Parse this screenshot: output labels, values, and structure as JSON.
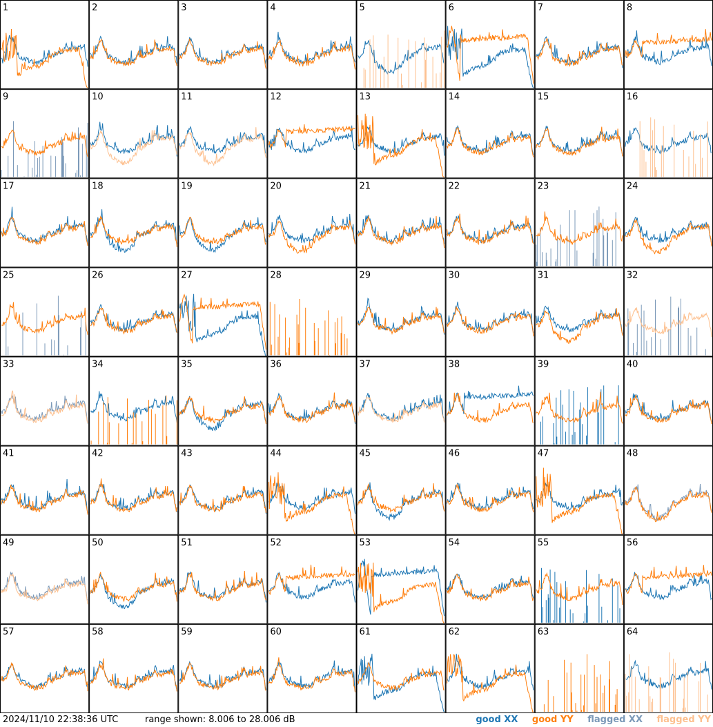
{
  "footer": {
    "timestamp": "2024/11/10 22:38:36 UTC",
    "range_text": "range shown: 8.006 to 28.006 dB"
  },
  "legend": {
    "good_xx": "good XX",
    "good_yy": "good YY",
    "flagged_xx": "flagged XX",
    "flagged_yy": "flagged YY"
  },
  "colors": {
    "good_xx": "#1f77b4",
    "good_yy": "#ff7f0e",
    "flagged_xx": "#7b99b8",
    "flagged_yy": "#fdc08f"
  },
  "chart_data": {
    "type": "line",
    "grid": "8x8",
    "y_units": "dB",
    "ylim": [
      8.006,
      28.006
    ],
    "panels": [
      {
        "id": "1",
        "xx": "zig",
        "yy": "dip_low_bad",
        "xx_flag": false,
        "yy_flag": false
      },
      {
        "id": "2",
        "xx": "normal",
        "yy": "normal",
        "xx_flag": false,
        "yy_flag": false
      },
      {
        "id": "3",
        "xx": "normal",
        "yy": "normal",
        "xx_flag": false,
        "yy_flag": false
      },
      {
        "id": "4",
        "xx": "normal",
        "yy": "normal",
        "xx_flag": false,
        "yy_flag": false
      },
      {
        "id": "5",
        "xx": "dip",
        "yy": "spikes",
        "xx_flag": false,
        "yy_flag": true
      },
      {
        "id": "6",
        "xx": "dip_low_bad",
        "yy": "flat_high",
        "xx_flag": false,
        "yy_flag": false
      },
      {
        "id": "7",
        "xx": "normal",
        "yy": "normal",
        "xx_flag": false,
        "yy_flag": false
      },
      {
        "id": "8",
        "xx": "normal",
        "yy": "flat",
        "xx_flag": false,
        "yy_flag": false
      },
      {
        "id": "9",
        "xx": "spikes",
        "yy": "normal",
        "xx_flag": true,
        "yy_flag": false
      },
      {
        "id": "10",
        "xx": "normal",
        "yy": "dip",
        "xx_flag": false,
        "yy_flag": true
      },
      {
        "id": "11",
        "xx": "normal",
        "yy": "dip",
        "xx_flag": false,
        "yy_flag": true
      },
      {
        "id": "12",
        "xx": "zig",
        "yy": "flat",
        "xx_flag": false,
        "yy_flag": false
      },
      {
        "id": "13",
        "xx": "normal",
        "yy": "dip_low_bad",
        "xx_flag": false,
        "yy_flag": false
      },
      {
        "id": "14",
        "xx": "normal",
        "yy": "normal",
        "xx_flag": false,
        "yy_flag": false
      },
      {
        "id": "15",
        "xx": "normal",
        "yy": "normal",
        "xx_flag": false,
        "yy_flag": false
      },
      {
        "id": "16",
        "xx": "normal",
        "yy": "spikes",
        "xx_flag": false,
        "yy_flag": true
      },
      {
        "id": "17",
        "xx": "normal",
        "yy": "normal",
        "xx_flag": false,
        "yy_flag": false
      },
      {
        "id": "18",
        "xx": "dip",
        "yy": "normal",
        "xx_flag": false,
        "yy_flag": false
      },
      {
        "id": "19",
        "xx": "dip",
        "yy": "normal",
        "xx_flag": false,
        "yy_flag": false
      },
      {
        "id": "20",
        "xx": "normal",
        "yy": "dip",
        "xx_flag": false,
        "yy_flag": false
      },
      {
        "id": "21",
        "xx": "normal",
        "yy": "normal",
        "xx_flag": false,
        "yy_flag": false
      },
      {
        "id": "22",
        "xx": "normal",
        "yy": "normal",
        "xx_flag": false,
        "yy_flag": false
      },
      {
        "id": "23",
        "xx": "spikes",
        "yy": "normal",
        "xx_flag": true,
        "yy_flag": false
      },
      {
        "id": "24",
        "xx": "normal",
        "yy": "dip",
        "xx_flag": false,
        "yy_flag": false
      },
      {
        "id": "25",
        "xx": "spikes",
        "yy": "normal",
        "xx_flag": true,
        "yy_flag": false
      },
      {
        "id": "26",
        "xx": "normal",
        "yy": "normal",
        "xx_flag": false,
        "yy_flag": false
      },
      {
        "id": "27",
        "xx": "dip_low_bad",
        "yy": "flat_high",
        "xx_flag": false,
        "yy_flag": false
      },
      {
        "id": "28",
        "xx": "none",
        "yy": "spikes",
        "xx_flag": false,
        "yy_flag": false
      },
      {
        "id": "29",
        "xx": "normal",
        "yy": "normal",
        "xx_flag": false,
        "yy_flag": false
      },
      {
        "id": "30",
        "xx": "normal",
        "yy": "normal",
        "xx_flag": false,
        "yy_flag": false
      },
      {
        "id": "31",
        "xx": "normal",
        "yy": "dip",
        "xx_flag": false,
        "yy_flag": false
      },
      {
        "id": "32",
        "xx": "spikes",
        "yy": "normal",
        "xx_flag": true,
        "yy_flag": true
      },
      {
        "id": "33",
        "xx": "normal",
        "yy": "normal",
        "xx_flag": true,
        "yy_flag": true
      },
      {
        "id": "34",
        "xx": "normal",
        "yy": "spikes",
        "xx_flag": false,
        "yy_flag": false
      },
      {
        "id": "35",
        "xx": "dip",
        "yy": "normal",
        "xx_flag": false,
        "yy_flag": false
      },
      {
        "id": "36",
        "xx": "normal",
        "yy": "normal",
        "xx_flag": false,
        "yy_flag": false
      },
      {
        "id": "37",
        "xx": "normal",
        "yy": "normal",
        "xx_flag": false,
        "yy_flag": true
      },
      {
        "id": "38",
        "xx": "flat",
        "yy": "normal",
        "xx_flag": false,
        "yy_flag": false
      },
      {
        "id": "39",
        "xx": "spikes",
        "yy": "normal",
        "xx_flag": false,
        "yy_flag": false
      },
      {
        "id": "40",
        "xx": "normal",
        "yy": "normal",
        "xx_flag": false,
        "yy_flag": false
      },
      {
        "id": "41",
        "xx": "normal",
        "yy": "normal",
        "xx_flag": false,
        "yy_flag": false
      },
      {
        "id": "42",
        "xx": "normal",
        "yy": "normal",
        "xx_flag": false,
        "yy_flag": false
      },
      {
        "id": "43",
        "xx": "normal",
        "yy": "normal",
        "xx_flag": false,
        "yy_flag": false
      },
      {
        "id": "44",
        "xx": "normal",
        "yy": "dip_low_bad",
        "xx_flag": false,
        "yy_flag": false
      },
      {
        "id": "45",
        "xx": "dip",
        "yy": "normal",
        "xx_flag": false,
        "yy_flag": false
      },
      {
        "id": "46",
        "xx": "normal",
        "yy": "normal",
        "xx_flag": false,
        "yy_flag": false
      },
      {
        "id": "47",
        "xx": "normal",
        "yy": "dip_low_bad",
        "xx_flag": false,
        "yy_flag": false
      },
      {
        "id": "48",
        "xx": "dip",
        "yy": "dip",
        "xx_flag": true,
        "yy_flag": false
      },
      {
        "id": "49",
        "xx": "normal",
        "yy": "normal",
        "xx_flag": true,
        "yy_flag": true
      },
      {
        "id": "50",
        "xx": "dip",
        "yy": "normal",
        "xx_flag": false,
        "yy_flag": false
      },
      {
        "id": "51",
        "xx": "normal",
        "yy": "normal",
        "xx_flag": false,
        "yy_flag": false
      },
      {
        "id": "52",
        "xx": "normal",
        "yy": "flat",
        "xx_flag": false,
        "yy_flag": false
      },
      {
        "id": "53",
        "xx": "flat_high",
        "yy": "dip_low_bad",
        "xx_flag": false,
        "yy_flag": false
      },
      {
        "id": "54",
        "xx": "normal",
        "yy": "normal",
        "xx_flag": false,
        "yy_flag": false
      },
      {
        "id": "55",
        "xx": "spikes",
        "yy": "normal",
        "xx_flag": false,
        "yy_flag": false
      },
      {
        "id": "56",
        "xx": "normal",
        "yy": "flat",
        "xx_flag": false,
        "yy_flag": false
      },
      {
        "id": "57",
        "xx": "normal",
        "yy": "normal",
        "xx_flag": false,
        "yy_flag": false
      },
      {
        "id": "58",
        "xx": "normal",
        "yy": "normal",
        "xx_flag": false,
        "yy_flag": false
      },
      {
        "id": "59",
        "xx": "normal",
        "yy": "normal",
        "xx_flag": false,
        "yy_flag": false
      },
      {
        "id": "60",
        "xx": "normal",
        "yy": "normal",
        "xx_flag": false,
        "yy_flag": false
      },
      {
        "id": "61",
        "xx": "dip_low_bad",
        "yy": "normal",
        "xx_flag": false,
        "yy_flag": false
      },
      {
        "id": "62",
        "xx": "normal",
        "yy": "dip_low_bad",
        "xx_flag": false,
        "yy_flag": false
      },
      {
        "id": "63",
        "xx": "none",
        "yy": "spikes",
        "xx_flag": false,
        "yy_flag": false
      },
      {
        "id": "64",
        "xx": "normal",
        "yy": "spikes",
        "xx_flag": false,
        "yy_flag": true
      }
    ]
  }
}
